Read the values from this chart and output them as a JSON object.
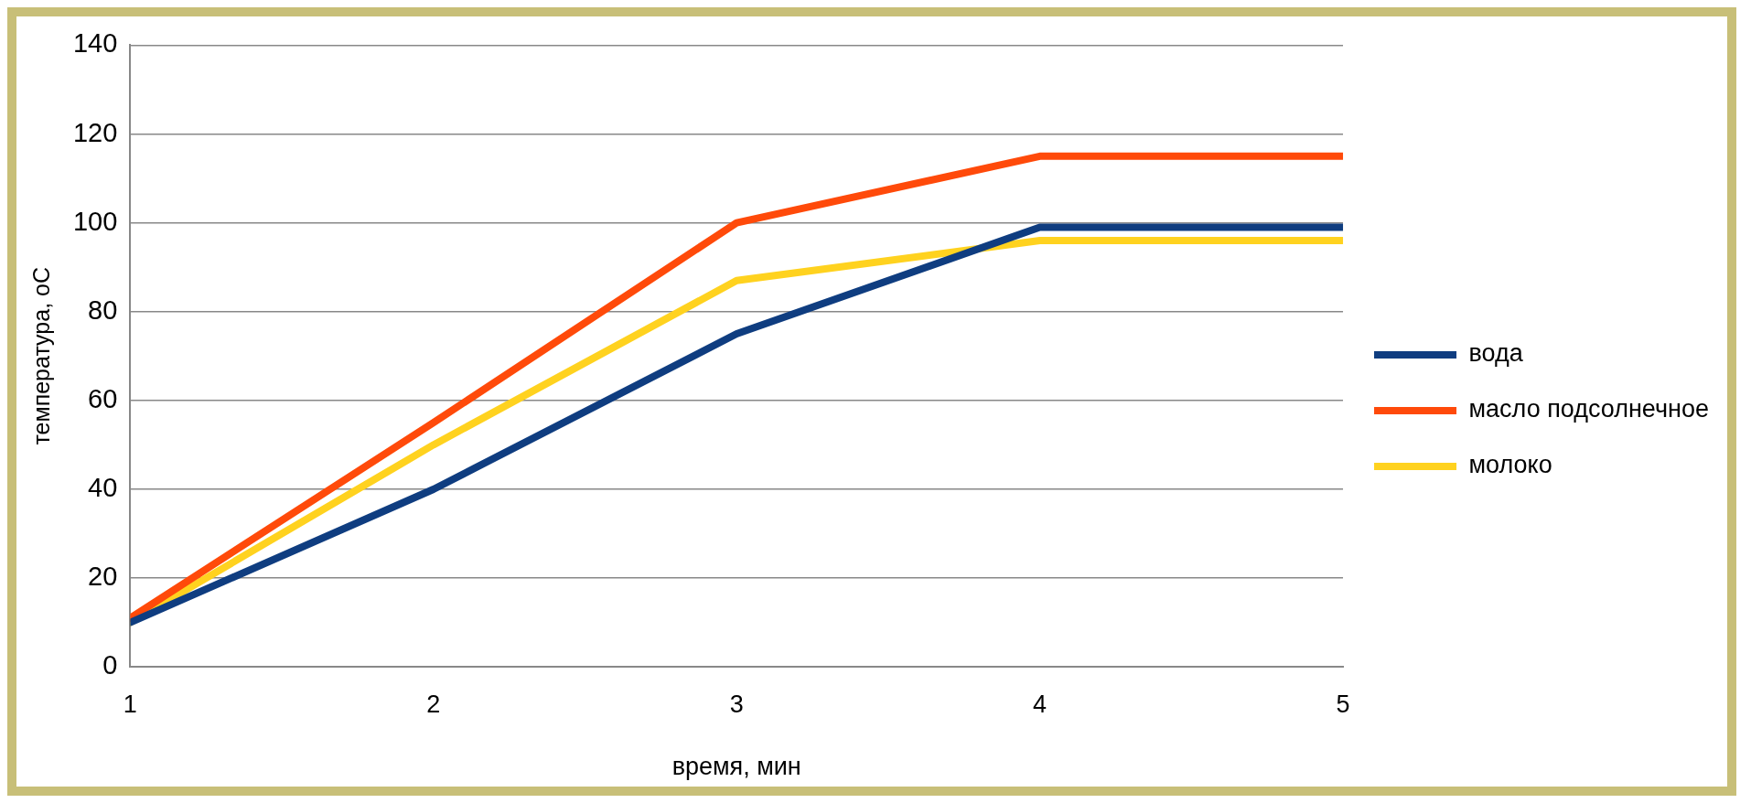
{
  "chart_data": {
    "type": "line",
    "xlabel": "время, мин",
    "ylabel": "температура, оС",
    "x": [
      1,
      2,
      3,
      4,
      5
    ],
    "series": [
      {
        "name": "вода",
        "color": "#0f3d80",
        "values": [
          10,
          40,
          75,
          99,
          99
        ]
      },
      {
        "name": "масло подсолнечное",
        "color": "#ff4a0a",
        "values": [
          11,
          55,
          100,
          115,
          115
        ]
      },
      {
        "name": "молоко",
        "color": "#ffd21f",
        "values": [
          10,
          50,
          87,
          96,
          96
        ]
      }
    ],
    "xlim": [
      1,
      5
    ],
    "xticks": [
      1,
      2,
      3,
      4,
      5
    ],
    "ylim": [
      0,
      140
    ],
    "yticks": [
      0,
      20,
      40,
      60,
      80,
      100,
      120,
      140
    ],
    "grid": "y",
    "legend": "right",
    "marker": "none",
    "line_style": "solid"
  }
}
